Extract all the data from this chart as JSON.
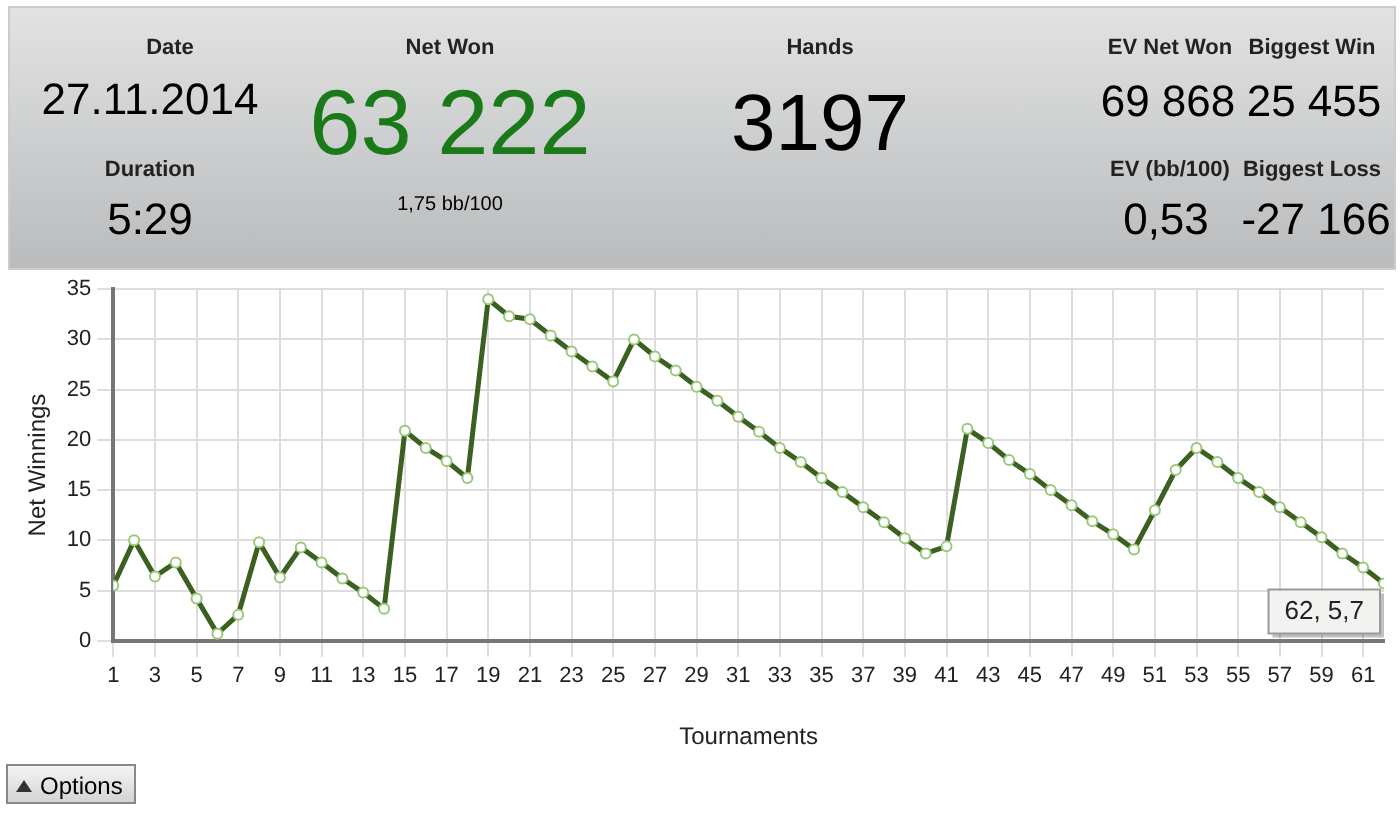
{
  "chart_data": {
    "type": "line",
    "xlabel": "Tournaments",
    "ylabel": "Net Winnings",
    "x": [
      1,
      2,
      3,
      4,
      5,
      6,
      7,
      8,
      9,
      10,
      11,
      12,
      13,
      14,
      15,
      16,
      17,
      18,
      19,
      20,
      21,
      22,
      23,
      24,
      25,
      26,
      27,
      28,
      29,
      30,
      31,
      32,
      33,
      34,
      35,
      36,
      37,
      38,
      39,
      40,
      41,
      42,
      43,
      44,
      45,
      46,
      47,
      48,
      49,
      50,
      51,
      52,
      53,
      54,
      55,
      56,
      57,
      58,
      59,
      60,
      61,
      62
    ],
    "series": [
      {
        "color": "#3b6020",
        "values": [
          5.5,
          10.0,
          6.4,
          7.8,
          4.2,
          0.7,
          2.6,
          9.8,
          6.3,
          9.3,
          7.8,
          6.2,
          4.8,
          3.2,
          20.9,
          19.2,
          17.9,
          16.2,
          34.0,
          32.3,
          32.0,
          30.4,
          28.8,
          27.3,
          25.8,
          30.0,
          28.3,
          26.9,
          25.3,
          23.9,
          22.3,
          20.8,
          19.2,
          17.8,
          16.2,
          14.8,
          13.3,
          11.8,
          10.2,
          8.7,
          9.4,
          21.1,
          19.7,
          18.0,
          16.6,
          15.0,
          13.5,
          11.9,
          10.6,
          9.1,
          13.0,
          17.0,
          19.2,
          17.8,
          16.2,
          14.8,
          13.3,
          11.8,
          10.3,
          8.7,
          7.3,
          5.7
        ]
      }
    ],
    "xlim": [
      1,
      62
    ],
    "xticks": [
      1,
      3,
      5,
      7,
      9,
      11,
      13,
      15,
      17,
      19,
      21,
      23,
      25,
      27,
      29,
      31,
      33,
      35,
      37,
      39,
      41,
      43,
      45,
      47,
      49,
      51,
      53,
      55,
      57,
      59,
      61
    ],
    "ylim": [
      0,
      35
    ],
    "yticks": [
      0,
      5,
      10,
      15,
      20,
      25,
      30,
      35
    ],
    "grid": true,
    "legend": false,
    "marker": "circle",
    "line_style": "solid",
    "annotations": [
      "Date",
      "27.11.2014",
      "Duration",
      "5:29",
      "Net Won",
      "63 222",
      "1,75 bb/100",
      "Hands",
      "3197",
      "EV Net Won",
      "69 868",
      "Biggest Win",
      "25 455",
      "EV (bb/100)",
      "0,53",
      "Biggest Loss",
      "-27 166",
      {
        "text": "62, 5,7",
        "x": 62,
        "y": 5.7
      },
      "Options"
    ]
  }
}
